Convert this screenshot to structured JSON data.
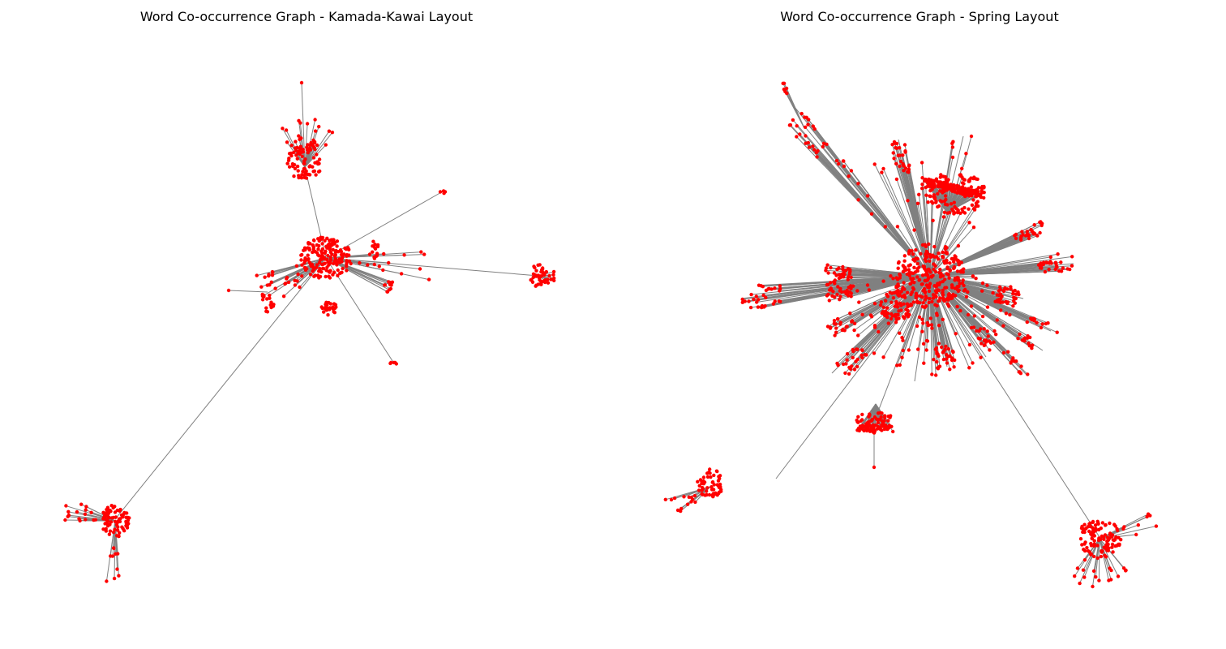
{
  "figure": {
    "panels": [
      {
        "title": "Word Co-occurrence Graph - Kamada-Kawai Layout"
      },
      {
        "title": "Word Co-occurrence Graph - Spring Layout"
      }
    ]
  },
  "colors": {
    "node": "#ff0000",
    "edge": "#808080",
    "background": "#ffffff"
  }
}
